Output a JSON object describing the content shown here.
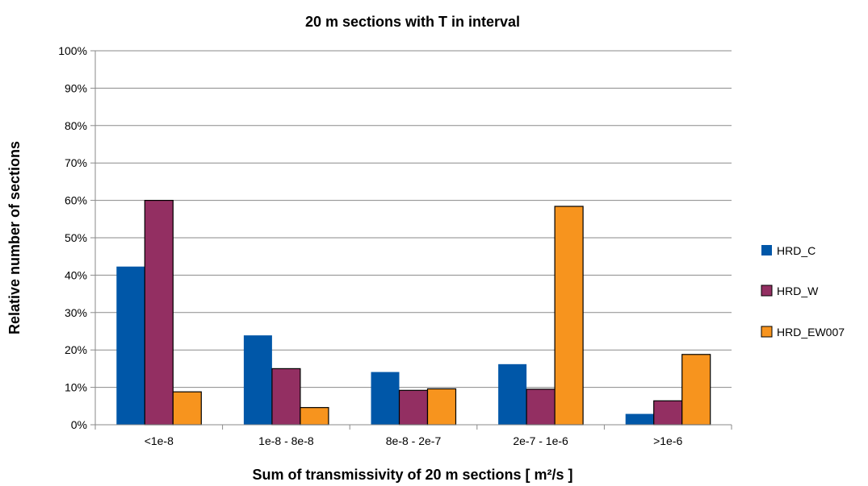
{
  "chart_data": {
    "type": "bar",
    "title": "20 m sections with T in interval",
    "xlabel": "Sum of transmissivity of 20 m sections [ m²/s ]",
    "ylabel": "Relative number of sections",
    "categories": [
      "<1e-8",
      "1e-8 - 8e-8",
      "8e-8 - 2e-7",
      "2e-7 - 1e-6",
      ">1e-6"
    ],
    "y_ticks": [
      "0%",
      "10%",
      "20%",
      "30%",
      "40%",
      "50%",
      "60%",
      "70%",
      "80%",
      "90%",
      "100%"
    ],
    "ylim": [
      0,
      100
    ],
    "grid": true,
    "legend_position": "right",
    "series": [
      {
        "name": "HRD_C",
        "color": "#0057a8",
        "values": [
          42.3,
          23.9,
          14.1,
          16.2,
          2.9
        ]
      },
      {
        "name": "HRD_W",
        "color": "#932f62",
        "values": [
          60.0,
          15.0,
          9.2,
          9.5,
          6.4
        ]
      },
      {
        "name": "HRD_EW007",
        "color": "#f7941e",
        "values": [
          8.8,
          4.6,
          9.6,
          58.4,
          18.8
        ]
      }
    ]
  }
}
